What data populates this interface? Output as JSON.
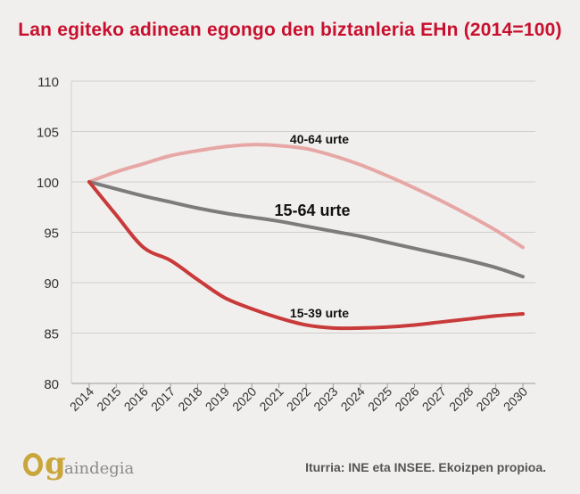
{
  "chart_data": {
    "type": "line",
    "title": "Lan egiteko adinean egongo den biztanleria EHn (2014=100)",
    "x": [
      "2014",
      "2015",
      "2016",
      "2017",
      "2018",
      "2019",
      "2020",
      "2021",
      "2022",
      "2023",
      "2024",
      "2025",
      "2026",
      "2027",
      "2028",
      "2029",
      "2030"
    ],
    "ylim": [
      80,
      110
    ],
    "yticks": [
      80,
      85,
      90,
      95,
      100,
      105,
      110
    ],
    "grid": "horizontal",
    "series": [
      {
        "name": "40-64 urte",
        "color": "#e6a7a5",
        "values": [
          100,
          101.0,
          101.8,
          102.6,
          103.1,
          103.5,
          103.7,
          103.6,
          103.3,
          102.6,
          101.7,
          100.6,
          99.4,
          98.1,
          96.7,
          95.2,
          93.5
        ]
      },
      {
        "name": "15-64 urte",
        "color": "#7c7c7c",
        "values": [
          100,
          99.3,
          98.6,
          98.0,
          97.4,
          96.9,
          96.5,
          96.1,
          95.6,
          95.1,
          94.6,
          94.0,
          93.4,
          92.8,
          92.2,
          91.5,
          90.6
        ]
      },
      {
        "name": "15-39 urte",
        "color": "#c93a3a",
        "values": [
          100,
          96.7,
          93.5,
          92.2,
          90.3,
          88.5,
          87.4,
          86.5,
          85.8,
          85.5,
          85.5,
          85.6,
          85.8,
          86.1,
          86.4,
          86.7,
          86.9
        ]
      }
    ]
  },
  "source": "Iturria: INE eta INSEE. Ekoizpen propioa.",
  "logo": {
    "letters": "O",
    "g": "g",
    "text": "aindegia"
  }
}
